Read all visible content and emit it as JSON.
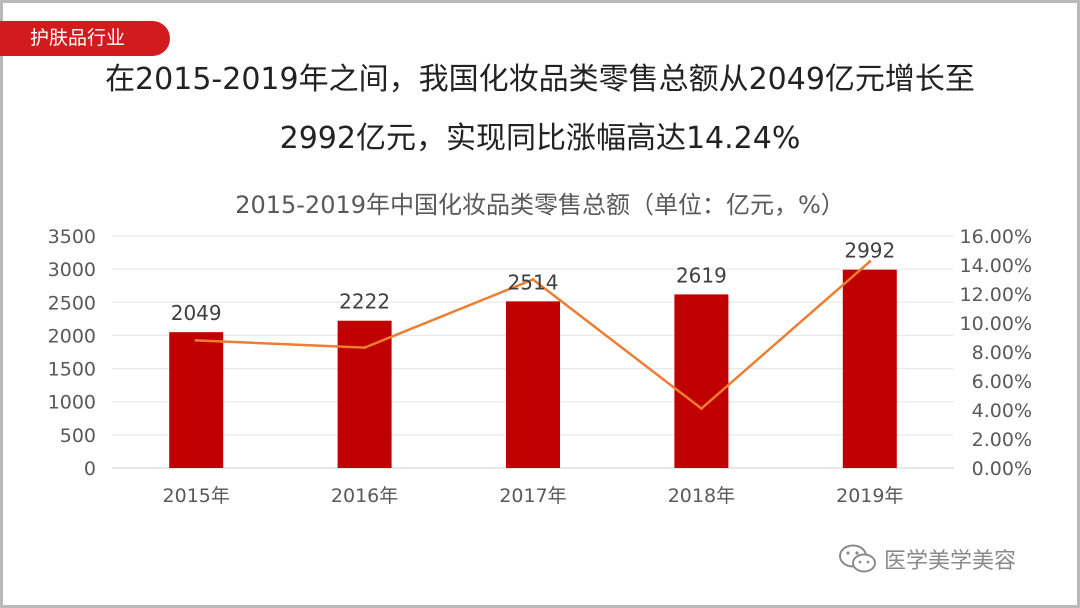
{
  "tag": {
    "label": "护肤品行业"
  },
  "headline": {
    "line1": "在2015-2019年之间，我国化妆品类零售总额从2049亿元增长至",
    "line2": "2992亿元，实现同比涨幅高达14.24%"
  },
  "watermark": {
    "text": "医学美学美容",
    "icon": "wechat-icon"
  },
  "colors": {
    "bar": "#c00000",
    "line": "#ed7d31",
    "tag": "#d21b1f"
  },
  "chart_data": {
    "type": "bar",
    "title": "2015-2019年中国化妆品类零售总额（单位：亿元，%）",
    "categories": [
      "2015年",
      "2016年",
      "2017年",
      "2018年",
      "2019年"
    ],
    "series": [
      {
        "type": "bar",
        "axis": "left",
        "values": [
          2049,
          2222,
          2514,
          2619,
          2992
        ],
        "data_labels": [
          "2049",
          "2222",
          "2514",
          "2619",
          "2992"
        ]
      },
      {
        "type": "line",
        "axis": "right",
        "values": [
          8.8,
          8.3,
          13.0,
          4.1,
          14.24
        ]
      }
    ],
    "y_left": {
      "min": 0,
      "max": 3500,
      "step": 500,
      "ticks": [
        "0",
        "500",
        "1000",
        "1500",
        "2000",
        "2500",
        "3000",
        "3500"
      ]
    },
    "y_right": {
      "min": 0,
      "max": 16,
      "step": 2,
      "ticks": [
        "0.00%",
        "2.00%",
        "4.00%",
        "6.00%",
        "8.00%",
        "10.00%",
        "12.00%",
        "14.00%",
        "16.00%"
      ]
    },
    "grid": true,
    "legend": "none"
  }
}
